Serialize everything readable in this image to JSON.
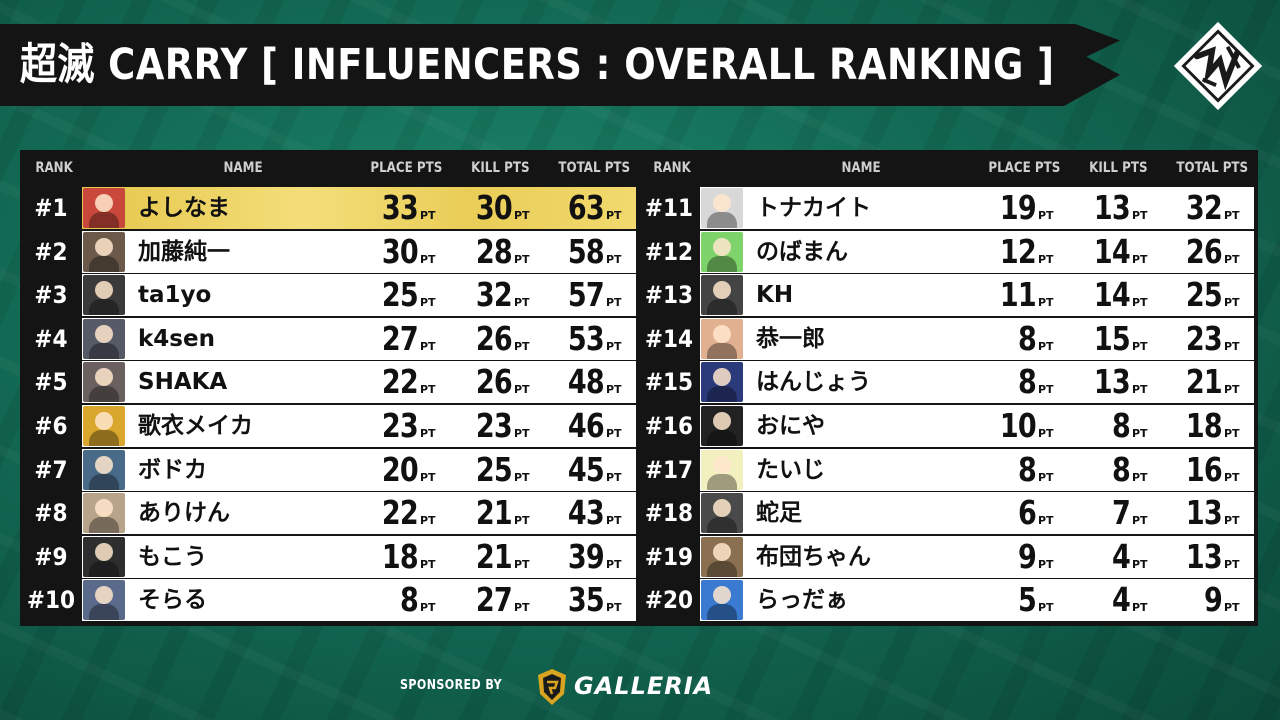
{
  "title": "超滅 CARRY [ INFLUENCERS : OVERALL RANKING ]",
  "logo_icon": "tournament-emblem-icon",
  "headers": {
    "rank": "RANK",
    "name": "NAME",
    "place": "PLACE PTS",
    "kill": "KILL PTS",
    "total": "TOTAL PTS"
  },
  "unit": "PT",
  "left": [
    {
      "rank": "#1",
      "name": "よしなま",
      "place": "33",
      "kill": "30",
      "total": "63",
      "avatar": "#c9483b"
    },
    {
      "rank": "#2",
      "name": "加藤純一",
      "place": "30",
      "kill": "28",
      "total": "58",
      "avatar": "#6b5a4a"
    },
    {
      "rank": "#3",
      "name": "ta1yo",
      "place": "25",
      "kill": "32",
      "total": "57",
      "avatar": "#3a3a3a"
    },
    {
      "rank": "#4",
      "name": "k4sen",
      "place": "27",
      "kill": "26",
      "total": "53",
      "avatar": "#555a66"
    },
    {
      "rank": "#5",
      "name": "SHAKA",
      "place": "22",
      "kill": "26",
      "total": "48",
      "avatar": "#6a6060"
    },
    {
      "rank": "#6",
      "name": "歌衣メイカ",
      "place": "23",
      "kill": "23",
      "total": "46",
      "avatar": "#d9a72e"
    },
    {
      "rank": "#7",
      "name": "ボドカ",
      "place": "20",
      "kill": "25",
      "total": "45",
      "avatar": "#4a6a8a"
    },
    {
      "rank": "#8",
      "name": "ありけん",
      "place": "22",
      "kill": "21",
      "total": "43",
      "avatar": "#b8a48a"
    },
    {
      "rank": "#9",
      "name": "もこう",
      "place": "18",
      "kill": "21",
      "total": "39",
      "avatar": "#2e2e2e"
    },
    {
      "rank": "#10",
      "name": "そらる",
      "place": "8",
      "kill": "27",
      "total": "35",
      "avatar": "#5a6a8a"
    }
  ],
  "right": [
    {
      "rank": "#11",
      "name": "トナカイト",
      "place": "19",
      "kill": "13",
      "total": "32",
      "avatar": "#d8d8d8"
    },
    {
      "rank": "#12",
      "name": "のばまん",
      "place": "12",
      "kill": "14",
      "total": "26",
      "avatar": "#7ed36a"
    },
    {
      "rank": "#13",
      "name": "KH",
      "place": "11",
      "kill": "14",
      "total": "25",
      "avatar": "#444444"
    },
    {
      "rank": "#14",
      "name": "恭一郎",
      "place": "8",
      "kill": "15",
      "total": "23",
      "avatar": "#e0b090"
    },
    {
      "rank": "#15",
      "name": "はんじょう",
      "place": "8",
      "kill": "13",
      "total": "21",
      "avatar": "#2a3a7a"
    },
    {
      "rank": "#16",
      "name": "おにや",
      "place": "10",
      "kill": "8",
      "total": "18",
      "avatar": "#222222"
    },
    {
      "rank": "#17",
      "name": "たいじ",
      "place": "8",
      "kill": "8",
      "total": "16",
      "avatar": "#f3f0c0"
    },
    {
      "rank": "#18",
      "name": "蛇足",
      "place": "6",
      "kill": "7",
      "total": "13",
      "avatar": "#4a4a4a"
    },
    {
      "rank": "#19",
      "name": "布団ちゃん",
      "place": "9",
      "kill": "4",
      "total": "13",
      "avatar": "#8a7050"
    },
    {
      "rank": "#20",
      "name": "らっだぁ",
      "place": "5",
      "kill": "4",
      "total": "9",
      "avatar": "#3a7ad0"
    }
  ],
  "sponsor": {
    "label": "SPONSORED BY",
    "name": "GALLERIA",
    "icon": "galleria-shield-icon"
  }
}
